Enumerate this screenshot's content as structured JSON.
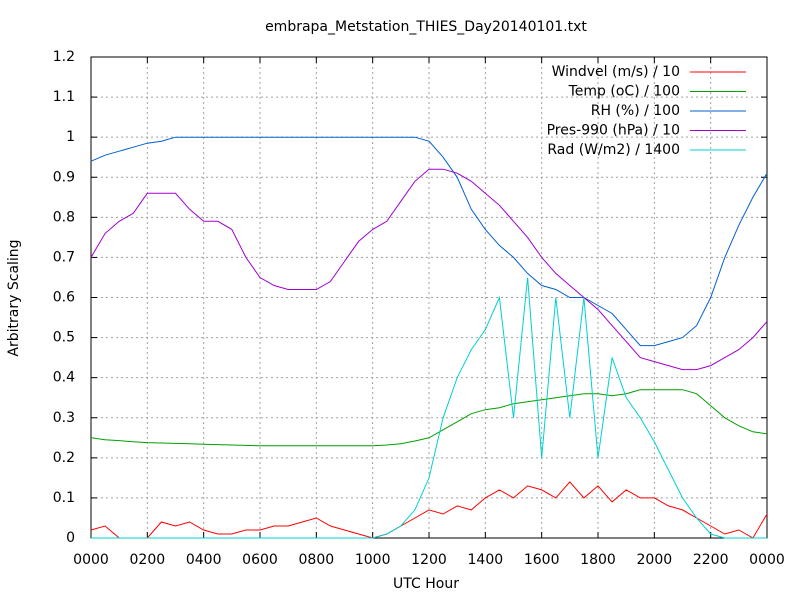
{
  "chart_data": {
    "type": "line",
    "title": "embrapa_Metstation_THIES_Day20140101.txt",
    "x_label": "UTC Hour",
    "y_label": "Arbitrary Scaling",
    "x": [
      0,
      0.5,
      1,
      1.5,
      2,
      2.5,
      3,
      3.5,
      4,
      4.5,
      5,
      5.5,
      6,
      6.5,
      7,
      7.5,
      8,
      8.5,
      9,
      9.5,
      10,
      10.5,
      11,
      11.5,
      12,
      12.5,
      13,
      13.5,
      14,
      14.5,
      15,
      15.5,
      16,
      16.5,
      17,
      17.5,
      18,
      18.5,
      19,
      19.5,
      20,
      20.5,
      21,
      21.5,
      22,
      22.5,
      23,
      23.5,
      24
    ],
    "xlim": [
      0,
      24
    ],
    "xticks": [
      {
        "value": 0,
        "label": "0000"
      },
      {
        "value": 2,
        "label": "0200"
      },
      {
        "value": 4,
        "label": "0400"
      },
      {
        "value": 6,
        "label": "0600"
      },
      {
        "value": 8,
        "label": "0800"
      },
      {
        "value": 10,
        "label": "1000"
      },
      {
        "value": 12,
        "label": "1200"
      },
      {
        "value": 14,
        "label": "1400"
      },
      {
        "value": 16,
        "label": "1600"
      },
      {
        "value": 18,
        "label": "1800"
      },
      {
        "value": 20,
        "label": "2000"
      },
      {
        "value": 22,
        "label": "2200"
      },
      {
        "value": 24,
        "label": "0000"
      }
    ],
    "ylim": [
      0,
      1.2
    ],
    "yticks": [
      0,
      0.1,
      0.2,
      0.3,
      0.4,
      0.5,
      0.6,
      0.7,
      0.8,
      0.9,
      1,
      1.1,
      1.2
    ],
    "grid": true,
    "legend": "top-right",
    "series": [
      {
        "name": "Windvel (m/s) / 10",
        "color": "#ff0000",
        "values": [
          0.02,
          0.03,
          0,
          0,
          0,
          0.04,
          0.03,
          0.04,
          0.02,
          0.01,
          0.01,
          0.02,
          0.02,
          0.03,
          0.03,
          0.04,
          0.05,
          0.03,
          0.02,
          0.01,
          0,
          0.01,
          0.03,
          0.05,
          0.07,
          0.06,
          0.08,
          0.07,
          0.1,
          0.12,
          0.1,
          0.13,
          0.12,
          0.1,
          0.14,
          0.1,
          0.13,
          0.09,
          0.12,
          0.1,
          0.1,
          0.08,
          0.07,
          0.05,
          0.03,
          0.01,
          0.02,
          0,
          0.06
        ]
      },
      {
        "name": "Temp (oC) / 100",
        "color": "#00a000",
        "values": [
          0.25,
          0.245,
          0.243,
          0.24,
          0.238,
          0.237,
          0.236,
          0.235,
          0.234,
          0.233,
          0.232,
          0.231,
          0.23,
          0.23,
          0.23,
          0.23,
          0.23,
          0.23,
          0.23,
          0.23,
          0.23,
          0.232,
          0.235,
          0.242,
          0.25,
          0.27,
          0.29,
          0.31,
          0.32,
          0.325,
          0.335,
          0.34,
          0.345,
          0.35,
          0.355,
          0.36,
          0.36,
          0.355,
          0.36,
          0.37,
          0.37,
          0.37,
          0.37,
          0.36,
          0.33,
          0.3,
          0.28,
          0.265,
          0.26
        ]
      },
      {
        "name": "RH (%) / 100",
        "color": "#0060d0",
        "values": [
          0.94,
          0.955,
          0.965,
          0.975,
          0.985,
          0.99,
          1,
          1,
          1,
          1,
          1,
          1,
          1,
          1,
          1,
          1,
          1,
          1,
          1,
          1,
          1,
          1,
          1,
          1,
          0.99,
          0.95,
          0.9,
          0.82,
          0.77,
          0.73,
          0.7,
          0.66,
          0.63,
          0.62,
          0.6,
          0.6,
          0.58,
          0.56,
          0.52,
          0.48,
          0.48,
          0.49,
          0.5,
          0.53,
          0.6,
          0.7,
          0.78,
          0.85,
          0.91
        ]
      },
      {
        "name": "Pres-990 (hPa) / 10",
        "color": "#a000d0",
        "values": [
          0.7,
          0.76,
          0.79,
          0.81,
          0.86,
          0.86,
          0.86,
          0.82,
          0.79,
          0.79,
          0.77,
          0.7,
          0.65,
          0.63,
          0.62,
          0.62,
          0.62,
          0.64,
          0.69,
          0.74,
          0.77,
          0.79,
          0.84,
          0.89,
          0.92,
          0.92,
          0.91,
          0.89,
          0.86,
          0.83,
          0.79,
          0.75,
          0.7,
          0.66,
          0.63,
          0.6,
          0.57,
          0.53,
          0.49,
          0.45,
          0.44,
          0.43,
          0.42,
          0.42,
          0.43,
          0.45,
          0.47,
          0.5,
          0.54
        ]
      },
      {
        "name": "Rad (W/m2) / 1400",
        "color": "#00d0d0",
        "values": [
          0,
          0,
          0,
          0,
          0,
          0,
          0,
          0,
          0,
          0,
          0,
          0,
          0,
          0,
          0,
          0,
          0,
          0,
          0,
          0,
          0,
          0.01,
          0.03,
          0.07,
          0.15,
          0.3,
          0.4,
          0.47,
          0.52,
          0.6,
          0.3,
          0.65,
          0.2,
          0.6,
          0.3,
          0.6,
          0.2,
          0.45,
          0.35,
          0.3,
          0.24,
          0.17,
          0.1,
          0.05,
          0.01,
          0,
          0,
          0,
          0
        ]
      }
    ]
  }
}
